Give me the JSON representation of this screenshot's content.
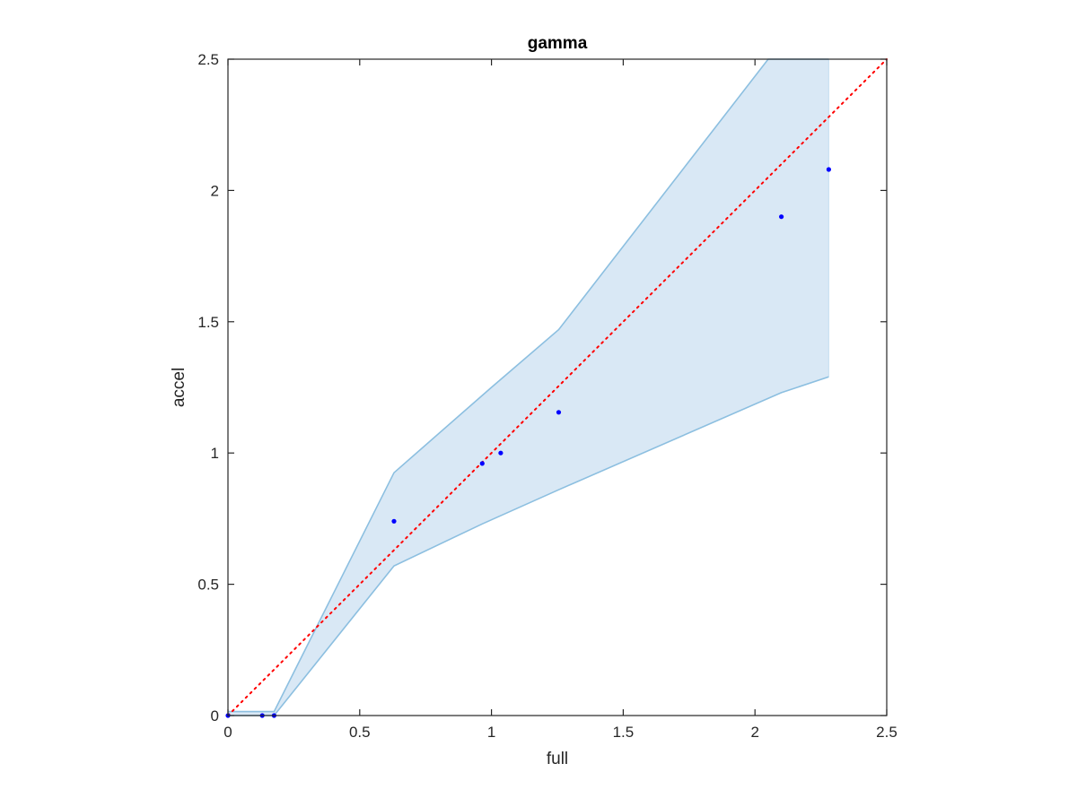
{
  "chart_data": {
    "type": "scatter",
    "title": "gamma",
    "xlabel": "full",
    "ylabel": "accel",
    "xlim": [
      0,
      2.5
    ],
    "ylim": [
      0,
      2.5
    ],
    "xticks": [
      "0",
      "0.5",
      "1",
      "1.5",
      "2",
      "2.5"
    ],
    "yticks": [
      "0",
      "0.5",
      "1",
      "1.5",
      "2",
      "2.5"
    ],
    "grid": false,
    "points": {
      "x": [
        0.0,
        0.13,
        0.175,
        0.63,
        0.965,
        1.035,
        1.255,
        2.1,
        2.28
      ],
      "y": [
        0.0,
        0.0,
        0.0,
        0.74,
        0.96,
        1.0,
        1.155,
        1.9,
        2.08
      ],
      "color": "#0000ff"
    },
    "band": {
      "upper": [
        [
          0,
          0.015
        ],
        [
          0.175,
          0.015
        ],
        [
          0.63,
          0.925
        ],
        [
          1.0,
          1.25
        ],
        [
          1.255,
          1.47
        ],
        [
          2.05,
          2.5
        ],
        [
          2.28,
          2.5
        ]
      ],
      "lower": [
        [
          0,
          0.0
        ],
        [
          0.175,
          0.0
        ],
        [
          0.63,
          0.57
        ],
        [
          0.965,
          0.73
        ],
        [
          1.255,
          0.86
        ],
        [
          2.1,
          1.23
        ],
        [
          2.28,
          1.29
        ]
      ],
      "fill_color": "#d9e8f5",
      "edge_color": "#8cbfe0"
    },
    "reference_line": {
      "x": [
        0,
        2.5
      ],
      "y": [
        0,
        2.5
      ],
      "style": "dotted",
      "color": "#ff0000"
    }
  }
}
